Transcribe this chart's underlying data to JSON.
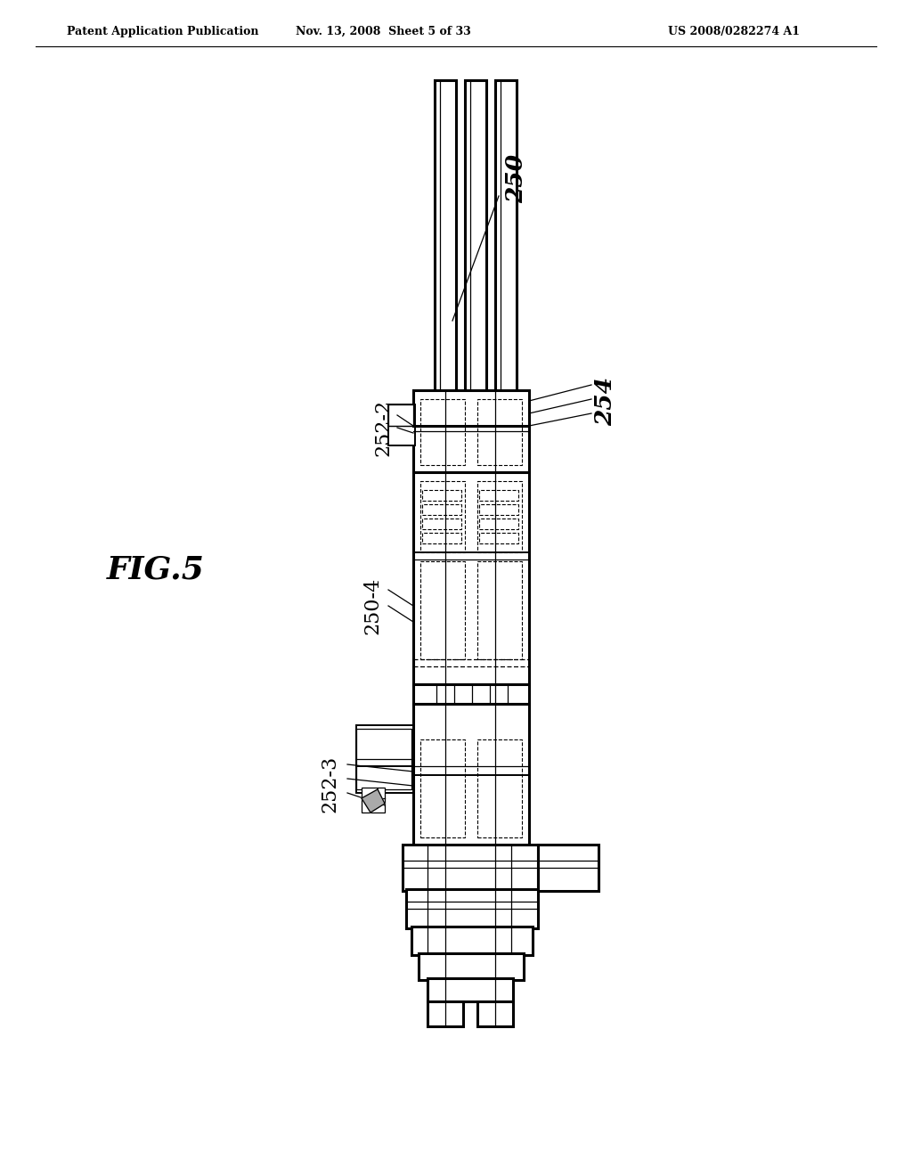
{
  "bg_color": "#ffffff",
  "header_left": "Patent Application Publication",
  "header_mid": "Nov. 13, 2008  Sheet 5 of 33",
  "header_right": "US 2008/0282274 A1",
  "fig_label": "FIG.5"
}
